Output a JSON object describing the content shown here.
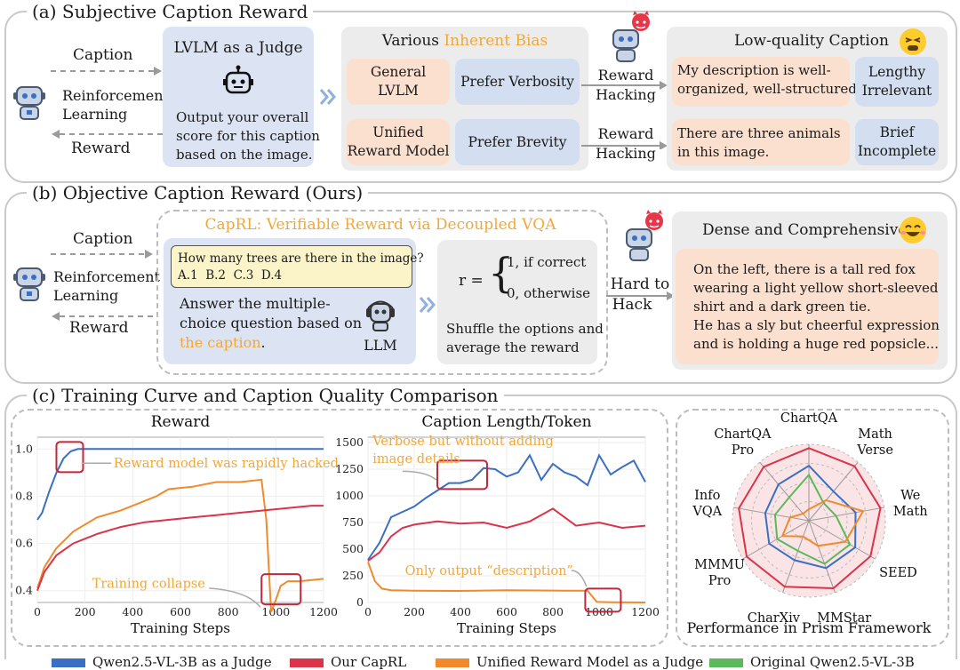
{
  "section_a": {
    "title": "(a) Subjective Caption Reward",
    "caption_label": "Caption",
    "rl_line1": "Reinforcement",
    "rl_line2": "Learning",
    "reward_label": "Reward",
    "judge_title": "LVLM as a Judge",
    "judge_line1": "Output your overall",
    "judge_line2": "score for this caption",
    "judge_line3": "based on the image.",
    "bias_prefix": "Various ",
    "bias_accent": "Inherent Bias",
    "general_line1": "General",
    "general_line2": "LVLM",
    "prefer_verbosity": "Prefer Verbosity",
    "unified_line1": "Unified",
    "unified_line2": "Reward Model",
    "prefer_brevity": "Prefer Brevity",
    "hack1_line1": "Reward",
    "hack1_line2": "Hacking",
    "hack2_line1": "Reward",
    "hack2_line2": "Hacking",
    "lowq_title": "Low-quality Caption",
    "lowq1_line1": "My description is well-",
    "lowq1_line2": "organized, well-structured...",
    "lowq1_tag1": "Lengthy",
    "lowq1_tag2": "Irrelevant",
    "lowq2_line1": "There are three animals",
    "lowq2_line2": "in this image.",
    "lowq2_tag1": "Brief",
    "lowq2_tag2": "Incomplete"
  },
  "section_b": {
    "title": "(b) Objective Caption Reward (Ours)",
    "caption_label": "Caption",
    "rl_line1": "Reinforcement",
    "rl_line2": "Learning",
    "reward_label": "Reward",
    "capr_title": "CapRL: Verifiable Reward via Decoupled VQA",
    "question": "How many trees are there in the image?",
    "options": "A.1  B.2  C.3  D.4",
    "answer_line1": "Answer the multiple-",
    "answer_line2": "choice question based on",
    "answer_accent": "the caption",
    "answer_end": ".",
    "llm_label": "LLM",
    "r_eq": "r =",
    "r_case1": "1, if correct",
    "r_case2": "0, otherwise",
    "shuffle_line1": "Shuffle the options and",
    "shuffle_line2": "average the reward",
    "hard_line1": "Hard to",
    "hard_line2": "Hack",
    "dense_title": "Dense and Comprehensive",
    "dense_line1": "On the left, there is a tall red fox",
    "dense_line2": "wearing a light yellow short-sleeved",
    "dense_line3": "shirt and a dark green tie.",
    "dense_line4": "He has a sly but cheerful expression",
    "dense_line5": "and is holding a huge red popsicle..."
  },
  "section_c": {
    "title": "(c) Training Curve and Caption Quality Comparison"
  },
  "legend": [
    {
      "label": "Qwen2.5-VL-3B as a Judge",
      "color": "#3a6fc4"
    },
    {
      "label": "Our CapRL",
      "color": "#d9344a"
    },
    {
      "label": "Unified Reward Model as a Judge",
      "color": "#f08a2c"
    },
    {
      "label": "Original Qwen2.5-VL-3B",
      "color": "#5cb85c"
    }
  ],
  "chart_data": [
    {
      "type": "line",
      "title": "Reward",
      "xlabel": "Training Steps",
      "ylabel": "",
      "xlim": [
        0,
        1200
      ],
      "ylim": [
        0.35,
        1.05
      ],
      "x_ticks": [
        "0",
        "200",
        "400",
        "600",
        "800",
        "1000",
        "1200"
      ],
      "y_ticks": [
        "0.4",
        "0.6",
        "0.8",
        "1.0"
      ],
      "annotations": [
        "Reward model was rapidly hacked",
        "Training collapse"
      ],
      "series": [
        {
          "name": "Qwen2.5-VL-3B as a Judge",
          "color": "#3a6fc4",
          "x": [
            0,
            20,
            50,
            80,
            110,
            140,
            170,
            200,
            300,
            1200
          ],
          "y": [
            0.7,
            0.73,
            0.82,
            0.9,
            0.96,
            0.99,
            1.0,
            1.0,
            1.0,
            1.0
          ]
        },
        {
          "name": "Unified Reward Model as a Judge",
          "color": "#f08a2c",
          "x": [
            0,
            30,
            80,
            150,
            250,
            350,
            450,
            500,
            550,
            650,
            750,
            850,
            940,
            960,
            980,
            1000,
            1020,
            1050,
            1100,
            1200
          ],
          "y": [
            0.41,
            0.5,
            0.58,
            0.65,
            0.71,
            0.74,
            0.78,
            0.8,
            0.83,
            0.84,
            0.86,
            0.86,
            0.87,
            0.7,
            0.31,
            0.36,
            0.42,
            0.44,
            0.44,
            0.45
          ]
        },
        {
          "name": "Our CapRL",
          "color": "#d9344a",
          "x": [
            0,
            30,
            80,
            150,
            250,
            350,
            450,
            550,
            650,
            750,
            850,
            950,
            1050,
            1150,
            1200
          ],
          "y": [
            0.4,
            0.48,
            0.55,
            0.6,
            0.64,
            0.67,
            0.69,
            0.7,
            0.71,
            0.72,
            0.73,
            0.74,
            0.75,
            0.76,
            0.76
          ]
        }
      ]
    },
    {
      "type": "line",
      "title": "Caption Length/Token",
      "xlabel": "Training Steps",
      "ylabel": "",
      "xlim": [
        0,
        1200
      ],
      "ylim": [
        0,
        1550
      ],
      "x_ticks": [
        "0",
        "200",
        "400",
        "600",
        "800",
        "1000",
        "1200"
      ],
      "y_ticks": [
        "0",
        "250",
        "500",
        "750",
        "1000",
        "1250",
        "1500"
      ],
      "annotations": [
        "Verbose but without adding image details",
        "Only output “description”"
      ],
      "series": [
        {
          "name": "Qwen2.5-VL-3B as a Judge",
          "color": "#3a6fc4",
          "x": [
            0,
            50,
            100,
            150,
            200,
            250,
            300,
            350,
            400,
            450,
            500,
            550,
            600,
            650,
            700,
            750,
            800,
            850,
            900,
            950,
            1000,
            1050,
            1100,
            1150,
            1200
          ],
          "y": [
            400,
            560,
            800,
            850,
            900,
            980,
            1050,
            1120,
            1120,
            1150,
            1260,
            1250,
            1180,
            1220,
            1380,
            1150,
            1300,
            1220,
            1180,
            1100,
            1380,
            1200,
            1270,
            1330,
            1130
          ]
        },
        {
          "name": "Our CapRL",
          "color": "#d9344a",
          "x": [
            0,
            50,
            100,
            150,
            200,
            300,
            400,
            500,
            600,
            700,
            800,
            900,
            1000,
            1100,
            1200
          ],
          "y": [
            390,
            470,
            620,
            700,
            730,
            760,
            740,
            750,
            700,
            760,
            880,
            720,
            750,
            700,
            720
          ]
        },
        {
          "name": "Unified Reward Model as a Judge",
          "color": "#f08a2c",
          "x": [
            0,
            30,
            60,
            100,
            200,
            400,
            600,
            800,
            900,
            950,
            990,
            1050,
            1200
          ],
          "y": [
            380,
            200,
            130,
            115,
            110,
            108,
            115,
            112,
            110,
            110,
            5,
            2,
            0
          ]
        }
      ]
    },
    {
      "type": "radar",
      "title": "Performance in Prism Framework",
      "axes": [
        "ChartQA",
        "Math Verse",
        "We Math",
        "SEED",
        "MMStar",
        "CharXiv",
        "MMMU Pro",
        "Info VQA",
        "ChartQA Pro"
      ],
      "series": [
        {
          "name": "Our CapRL",
          "color": "#d9344a",
          "values": [
            0.95,
            0.93,
            0.95,
            0.93,
            0.94,
            0.92,
            0.94,
            0.93,
            0.92
          ]
        },
        {
          "name": "Qwen2.5-VL-3B as a Judge",
          "color": "#3a6fc4",
          "values": [
            0.72,
            0.5,
            0.62,
            0.7,
            0.66,
            0.55,
            0.6,
            0.58,
            0.62
          ]
        },
        {
          "name": "Original Qwen2.5-VL-3B",
          "color": "#5cb85c",
          "values": [
            0.6,
            0.3,
            0.36,
            0.62,
            0.6,
            0.42,
            0.48,
            0.45,
            0.4
          ]
        },
        {
          "name": "Unified Reward Model as a Judge",
          "color": "#f08a2c",
          "values": [
            0.15,
            0.35,
            0.72,
            0.55,
            0.35,
            0.22,
            0.4,
            0.25,
            0.12
          ]
        }
      ]
    }
  ]
}
